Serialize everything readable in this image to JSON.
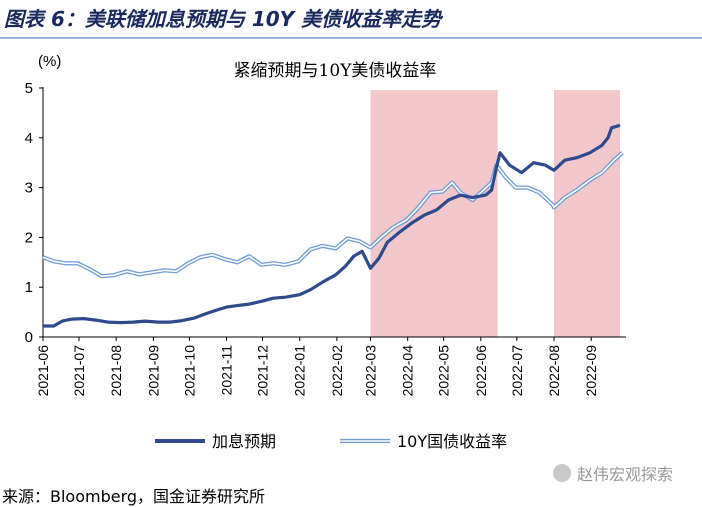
{
  "figure_title": "图表 6：美联储加息预期与 10Y 美债收益率走势",
  "source": "来源：Bloomberg，国金证券研究所",
  "watermark": "赵伟宏观探索",
  "watermark_icon": "wechat-icon",
  "colors": {
    "hike_line": "#2e4a8e",
    "yield_line": "#6f9cd4",
    "shade": "#f2c8ca",
    "title_text": "#1a2a5e"
  },
  "chart_data": {
    "type": "line",
    "title": "紧缩预期与10Y美债收益率",
    "unit_label": "(%)",
    "ylim": [
      0,
      5
    ],
    "yticks": [
      0,
      1,
      2,
      3,
      4,
      5
    ],
    "xlim": [
      "2021-06-01",
      "2022-09-30"
    ],
    "xticks": [
      "2021-06",
      "2021-07",
      "2021-08",
      "2021-09",
      "2021-10",
      "2021-11",
      "2021-12",
      "2022-01",
      "2022-02",
      "2022-03",
      "2022-04",
      "2022-05",
      "2022-06",
      "2022-07",
      "2022-08",
      "2022-09"
    ],
    "shaded_periods": [
      {
        "start": "2022-03-01",
        "end": "2022-06-15"
      },
      {
        "start": "2022-08-01",
        "end": "2022-09-25"
      }
    ],
    "legend_position": "bottom",
    "series": [
      {
        "name": "加息预期",
        "style": "solid",
        "points": [
          [
            "2021-06-01",
            0.22
          ],
          [
            "2021-06-10",
            0.22
          ],
          [
            "2021-06-17",
            0.32
          ],
          [
            "2021-06-25",
            0.36
          ],
          [
            "2021-07-05",
            0.37
          ],
          [
            "2021-07-15",
            0.34
          ],
          [
            "2021-07-25",
            0.3
          ],
          [
            "2021-08-05",
            0.29
          ],
          [
            "2021-08-15",
            0.3
          ],
          [
            "2021-08-25",
            0.32
          ],
          [
            "2021-09-05",
            0.3
          ],
          [
            "2021-09-15",
            0.3
          ],
          [
            "2021-09-25",
            0.33
          ],
          [
            "2021-10-05",
            0.38
          ],
          [
            "2021-10-15",
            0.47
          ],
          [
            "2021-10-25",
            0.55
          ],
          [
            "2021-11-01",
            0.6
          ],
          [
            "2021-11-10",
            0.63
          ],
          [
            "2021-11-20",
            0.66
          ],
          [
            "2021-12-01",
            0.72
          ],
          [
            "2021-12-10",
            0.78
          ],
          [
            "2021-12-20",
            0.8
          ],
          [
            "2022-01-01",
            0.85
          ],
          [
            "2022-01-10",
            0.95
          ],
          [
            "2022-01-20",
            1.1
          ],
          [
            "2022-01-31",
            1.25
          ],
          [
            "2022-02-08",
            1.42
          ],
          [
            "2022-02-15",
            1.62
          ],
          [
            "2022-02-22",
            1.72
          ],
          [
            "2022-03-01",
            1.38
          ],
          [
            "2022-03-08",
            1.58
          ],
          [
            "2022-03-15",
            1.9
          ],
          [
            "2022-03-25",
            2.1
          ],
          [
            "2022-04-05",
            2.3
          ],
          [
            "2022-04-15",
            2.45
          ],
          [
            "2022-04-25",
            2.55
          ],
          [
            "2022-05-05",
            2.75
          ],
          [
            "2022-05-15",
            2.85
          ],
          [
            "2022-05-25",
            2.8
          ],
          [
            "2022-06-05",
            2.85
          ],
          [
            "2022-06-10",
            2.95
          ],
          [
            "2022-06-14",
            3.4
          ],
          [
            "2022-06-17",
            3.7
          ],
          [
            "2022-06-25",
            3.45
          ],
          [
            "2022-07-05",
            3.3
          ],
          [
            "2022-07-15",
            3.5
          ],
          [
            "2022-07-25",
            3.45
          ],
          [
            "2022-08-01",
            3.35
          ],
          [
            "2022-08-10",
            3.55
          ],
          [
            "2022-08-20",
            3.6
          ],
          [
            "2022-08-31",
            3.7
          ],
          [
            "2022-09-10",
            3.85
          ],
          [
            "2022-09-15",
            4.0
          ],
          [
            "2022-09-18",
            4.2
          ],
          [
            "2022-09-25",
            4.25
          ]
        ]
      },
      {
        "name": "10Y国债收益率",
        "style": "double",
        "points": [
          [
            "2021-06-01",
            1.6
          ],
          [
            "2021-06-10",
            1.52
          ],
          [
            "2021-06-20",
            1.48
          ],
          [
            "2021-06-30",
            1.48
          ],
          [
            "2021-07-10",
            1.36
          ],
          [
            "2021-07-20",
            1.22
          ],
          [
            "2021-07-30",
            1.24
          ],
          [
            "2021-08-10",
            1.32
          ],
          [
            "2021-08-20",
            1.26
          ],
          [
            "2021-08-31",
            1.3
          ],
          [
            "2021-09-10",
            1.34
          ],
          [
            "2021-09-20",
            1.32
          ],
          [
            "2021-09-30",
            1.48
          ],
          [
            "2021-10-10",
            1.6
          ],
          [
            "2021-10-20",
            1.65
          ],
          [
            "2021-10-31",
            1.56
          ],
          [
            "2021-11-10",
            1.5
          ],
          [
            "2021-11-20",
            1.62
          ],
          [
            "2021-11-30",
            1.45
          ],
          [
            "2021-12-10",
            1.48
          ],
          [
            "2021-12-20",
            1.45
          ],
          [
            "2021-12-31",
            1.52
          ],
          [
            "2022-01-10",
            1.76
          ],
          [
            "2022-01-20",
            1.83
          ],
          [
            "2022-01-31",
            1.78
          ],
          [
            "2022-02-10",
            1.98
          ],
          [
            "2022-02-20",
            1.92
          ],
          [
            "2022-03-01",
            1.8
          ],
          [
            "2022-03-10",
            2.0
          ],
          [
            "2022-03-20",
            2.2
          ],
          [
            "2022-03-31",
            2.35
          ],
          [
            "2022-04-10",
            2.6
          ],
          [
            "2022-04-20",
            2.9
          ],
          [
            "2022-04-30",
            2.92
          ],
          [
            "2022-05-08",
            3.1
          ],
          [
            "2022-05-15",
            2.9
          ],
          [
            "2022-05-25",
            2.75
          ],
          [
            "2022-06-01",
            2.9
          ],
          [
            "2022-06-10",
            3.1
          ],
          [
            "2022-06-14",
            3.45
          ],
          [
            "2022-06-22",
            3.2
          ],
          [
            "2022-06-30",
            3.0
          ],
          [
            "2022-07-10",
            3.0
          ],
          [
            "2022-07-20",
            2.9
          ],
          [
            "2022-07-31",
            2.65
          ],
          [
            "2022-08-01",
            2.6
          ],
          [
            "2022-08-10",
            2.8
          ],
          [
            "2022-08-20",
            2.95
          ],
          [
            "2022-08-31",
            3.15
          ],
          [
            "2022-09-10",
            3.3
          ],
          [
            "2022-09-20",
            3.55
          ],
          [
            "2022-09-27",
            3.7
          ]
        ]
      }
    ]
  }
}
